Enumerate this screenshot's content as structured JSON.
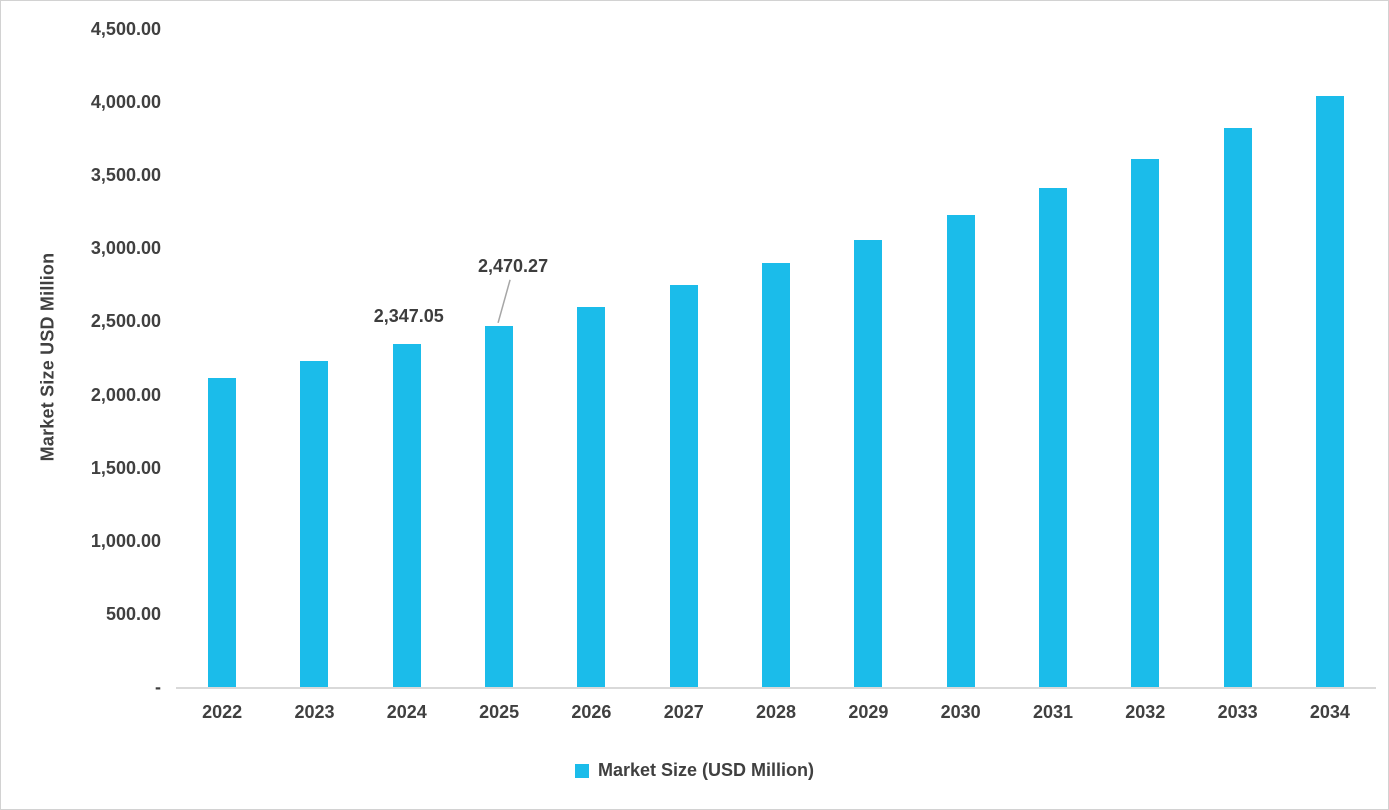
{
  "chart_data": {
    "type": "bar",
    "title": "",
    "categories": [
      "2022",
      "2023",
      "2024",
      "2025",
      "2026",
      "2027",
      "2028",
      "2029",
      "2030",
      "2031",
      "2032",
      "2033",
      "2034"
    ],
    "values": [
      2110,
      2228,
      2347.05,
      2470.27,
      2600,
      2748,
      2900,
      3055,
      3230,
      3415,
      3610,
      3820,
      4045
    ],
    "xlabel": "",
    "ylabel": "Market Size USD Million",
    "ylim": [
      0,
      4500
    ],
    "grid": false,
    "yticks": [
      {
        "value": 4500,
        "label": "4,500.00"
      },
      {
        "value": 4000,
        "label": "4,000.00"
      },
      {
        "value": 3500,
        "label": "3,500.00"
      },
      {
        "value": 3000,
        "label": "3,000.00"
      },
      {
        "value": 2500,
        "label": "2,500.00"
      },
      {
        "value": 2000,
        "label": "2,000.00"
      },
      {
        "value": 1500,
        "label": "1,500.00"
      },
      {
        "value": 1000,
        "label": "1,000.00"
      },
      {
        "value": 500,
        "label": "500.00"
      },
      {
        "value": 0,
        "label": "-"
      }
    ],
    "annotations": [
      {
        "category": "2024",
        "text": "2,347.05",
        "style": "above"
      },
      {
        "category": "2025",
        "text": "2,470.27",
        "style": "callout"
      }
    ],
    "legend": {
      "position": "bottom",
      "items": [
        {
          "label": "Market Size (USD Million)",
          "color": "#1BBCEA"
        }
      ]
    },
    "bar_color": "#1BBCEA",
    "axis_color": "#D9D9D9",
    "text_color": "#404040",
    "callout_line_color": "#A6A6A6"
  }
}
